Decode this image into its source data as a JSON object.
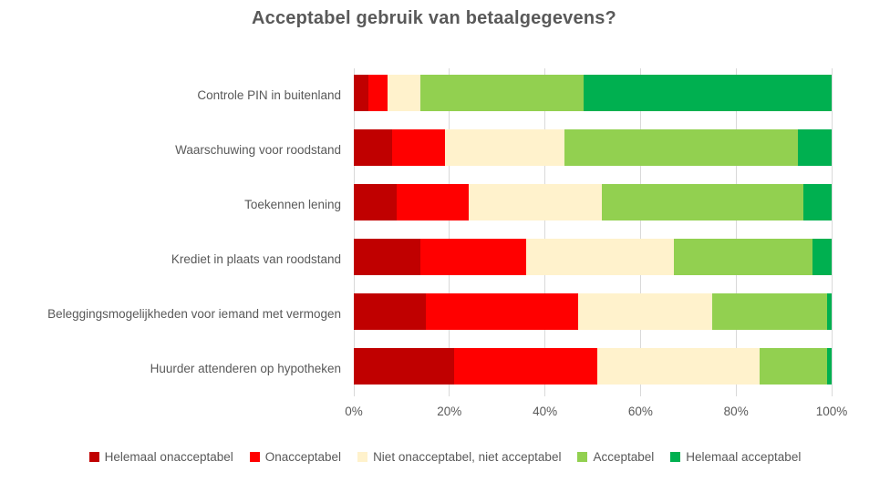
{
  "chart_data": {
    "type": "bar",
    "variant": "horizontal-stacked-100pct",
    "title": "Acceptabel gebruik van betaalgegevens?",
    "categories": [
      "Controle PIN in buitenland",
      "Waarschuwing voor roodstand",
      "Toekennen lening",
      "Krediet in plaats van roodstand",
      "Beleggingsmogelijkheden voor iemand met vermogen",
      "Huurder attenderen op hypotheken"
    ],
    "series": [
      {
        "name": "Helemaal onacceptabel",
        "color": "#C00000",
        "values": [
          3,
          8,
          9,
          14,
          15,
          21
        ]
      },
      {
        "name": "Onacceptabel",
        "color": "#FF0000",
        "values": [
          4,
          11,
          15,
          22,
          32,
          30
        ]
      },
      {
        "name": "Niet onacceptabel, niet acceptabel",
        "color": "#FFF2CC",
        "values": [
          7,
          25,
          28,
          31,
          28,
          34
        ]
      },
      {
        "name": "Acceptabel",
        "color": "#92D050",
        "values": [
          34,
          49,
          42,
          29,
          24,
          14
        ]
      },
      {
        "name": "Helemaal acceptabel",
        "color": "#00B050",
        "values": [
          52,
          7,
          6,
          4,
          1,
          1
        ]
      }
    ],
    "x_ticks": [
      {
        "label": "0%",
        "value": 0
      },
      {
        "label": "20%",
        "value": 20
      },
      {
        "label": "40%",
        "value": 40
      },
      {
        "label": "60%",
        "value": 60
      },
      {
        "label": "80%",
        "value": 80
      },
      {
        "label": "100%",
        "value": 100
      }
    ],
    "xlim": [
      0,
      100
    ],
    "grid": true,
    "legend_position": "bottom",
    "colors": {
      "text": "#595959",
      "gridline": "#D9D9D9",
      "background": "#FFFFFF"
    }
  }
}
